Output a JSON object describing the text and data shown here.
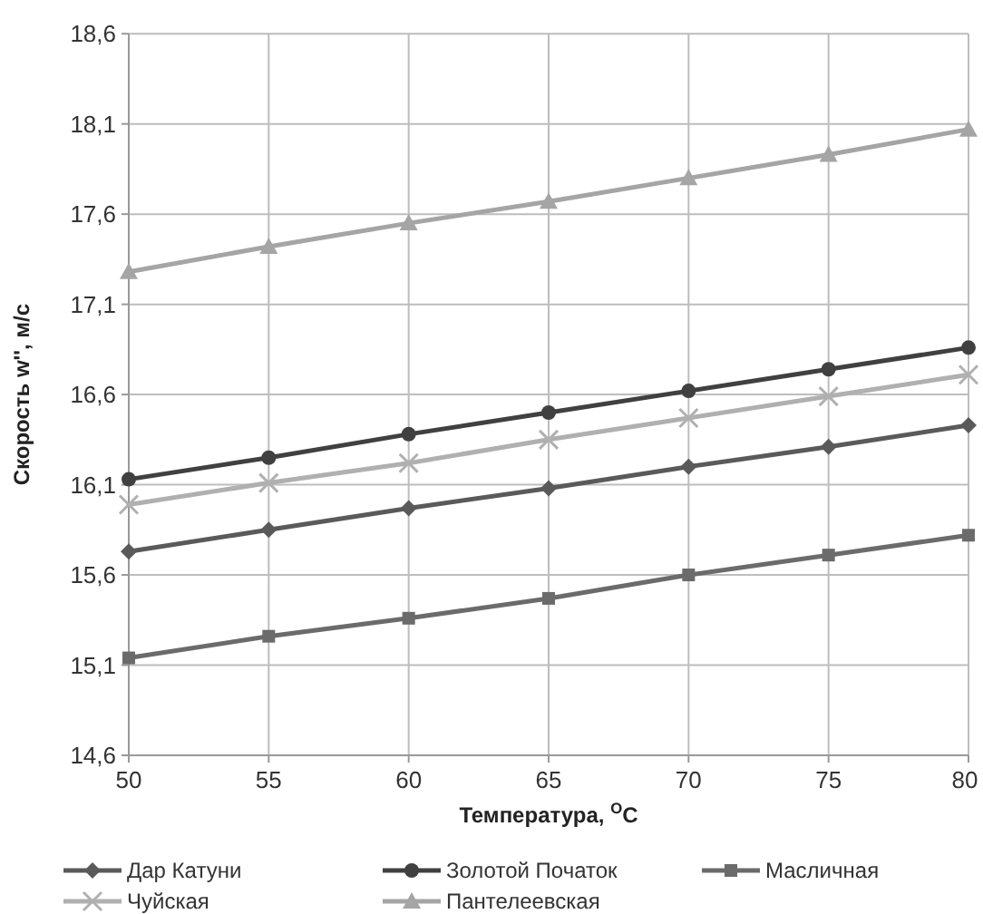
{
  "chart_data": {
    "type": "line",
    "xlabel": "Температура, $^{O}$C",
    "ylabel": "Скорость w'', м/с",
    "x": [
      50,
      55,
      60,
      65,
      70,
      75,
      80
    ],
    "series": [
      {
        "name": "Дар Катуни",
        "color": "#5a5a5a",
        "marker": "diamond",
        "values": [
          15.73,
          15.85,
          15.97,
          16.08,
          16.2,
          16.31,
          16.43
        ]
      },
      {
        "name": "Золотой Початок",
        "color": "#404040",
        "marker": "circle",
        "values": [
          16.13,
          16.25,
          16.38,
          16.5,
          16.62,
          16.74,
          16.86
        ]
      },
      {
        "name": "Масличная",
        "color": "#6b6b6b",
        "marker": "square",
        "values": [
          15.14,
          15.26,
          15.36,
          15.47,
          15.6,
          15.71,
          15.82
        ]
      },
      {
        "name": "Чуйская",
        "color": "#b0b0b0",
        "marker": "cross",
        "values": [
          15.99,
          16.11,
          16.22,
          16.35,
          16.47,
          16.59,
          16.71
        ]
      },
      {
        "name": "Пантелеевская",
        "color": "#a5a5a5",
        "marker": "triangle",
        "values": [
          17.28,
          17.42,
          17.55,
          17.67,
          17.8,
          17.93,
          18.07
        ]
      }
    ],
    "xlim": [
      50,
      80
    ],
    "xticks": [
      50,
      55,
      60,
      65,
      70,
      75,
      80
    ],
    "ylim": [
      14.6,
      18.6
    ],
    "yticks": [
      {
        "value": 14.6,
        "label": "14,6"
      },
      {
        "value": 15.1,
        "label": "15,1"
      },
      {
        "value": 15.6,
        "label": "15,6"
      },
      {
        "value": 16.1,
        "label": "16,1"
      },
      {
        "value": 16.6,
        "label": "16,6"
      },
      {
        "value": 17.1,
        "label": "17,1"
      },
      {
        "value": 17.6,
        "label": "17,6"
      },
      {
        "value": 18.1,
        "label": "18,1"
      },
      {
        "value": 18.6,
        "label": "18,6"
      }
    ],
    "grid": true,
    "legend": "bottom",
    "line_style": "solid"
  }
}
